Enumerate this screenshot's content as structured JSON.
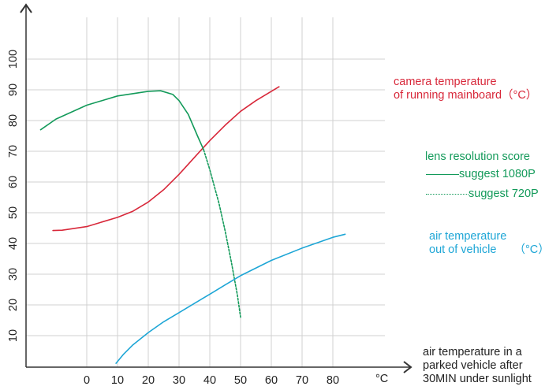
{
  "chart_data": {
    "type": "line",
    "xlabel": [
      "air temperature in a",
      "parked vehicle after",
      "30MIN under sunlight"
    ],
    "x_unit": "°C",
    "x_ticks": [
      0,
      10,
      20,
      30,
      40,
      50,
      60,
      70,
      80
    ],
    "y_ticks": [
      10,
      20,
      30,
      40,
      50,
      60,
      70,
      80,
      90,
      100
    ],
    "xlim": [
      -19.7,
      96
    ],
    "ylim": [
      0,
      113
    ],
    "grid": true,
    "colors": {
      "red": "#d8283a",
      "green": "#139a5a",
      "blue": "#1ea6d6",
      "grid": "#d0d0d0",
      "axis": "#333333"
    },
    "series": [
      {
        "name": [
          "camera temperature",
          "of running mainboard（°C）"
        ],
        "color": "#d8283a",
        "style": "solid",
        "points": [
          [
            -11,
            44.2
          ],
          [
            -8,
            44.3
          ],
          [
            0,
            45.5
          ],
          [
            5,
            47
          ],
          [
            10,
            48.5
          ],
          [
            15,
            50.5
          ],
          [
            20,
            53.5
          ],
          [
            25,
            57.5
          ],
          [
            30,
            62.5
          ],
          [
            35,
            68
          ],
          [
            40,
            73.5
          ],
          [
            45,
            78.5
          ],
          [
            50,
            83
          ],
          [
            55,
            86.5
          ],
          [
            60,
            89.5
          ],
          [
            62.5,
            91
          ]
        ]
      },
      {
        "name": "suggest 1080P",
        "group": "lens resolution score",
        "color": "#139a5a",
        "style": "solid",
        "points": [
          [
            -15,
            77
          ],
          [
            -10,
            80.5
          ],
          [
            0,
            85
          ],
          [
            10,
            88
          ],
          [
            20,
            89.5
          ],
          [
            24,
            89.7
          ],
          [
            28,
            88.5
          ],
          [
            30,
            86.5
          ],
          [
            33,
            82
          ],
          [
            36,
            75
          ],
          [
            38,
            70.5
          ]
        ]
      },
      {
        "name": "suggest 720P",
        "group": "lens resolution score",
        "color": "#139a5a",
        "style": "dashed",
        "points": [
          [
            38,
            70.5
          ],
          [
            40,
            64
          ],
          [
            43,
            53
          ],
          [
            45,
            44
          ],
          [
            47,
            34
          ],
          [
            49,
            23
          ],
          [
            50,
            16
          ]
        ]
      },
      {
        "name": [
          "air temperature",
          "out of vehicle",
          "（°C）"
        ],
        "color": "#1ea6d6",
        "style": "solid",
        "points": [
          [
            9.5,
            1
          ],
          [
            12,
            4
          ],
          [
            15,
            7
          ],
          [
            20,
            11
          ],
          [
            25,
            14.5
          ],
          [
            30,
            17.5
          ],
          [
            35,
            20.5
          ],
          [
            40,
            23.5
          ],
          [
            45,
            26.5
          ],
          [
            50,
            29.5
          ],
          [
            60,
            34.5
          ],
          [
            70,
            38.5
          ],
          [
            80,
            42
          ],
          [
            84,
            43
          ]
        ]
      }
    ],
    "legend": {
      "group_title": "lens resolution score",
      "placement": "right"
    }
  }
}
